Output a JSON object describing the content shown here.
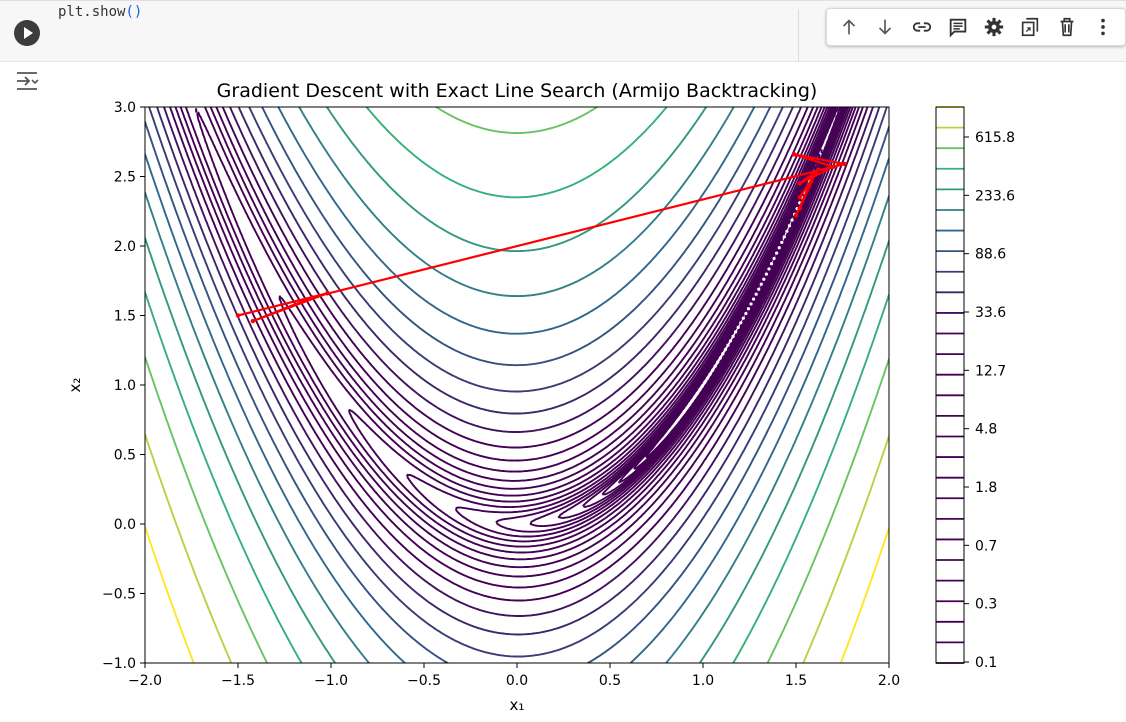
{
  "cell": {
    "code_text": "plt.show",
    "code_parens": "()"
  },
  "toolbar": {
    "items": [
      {
        "icon": "arrow-up-icon"
      },
      {
        "icon": "arrow-down-icon"
      },
      {
        "icon": "link-icon"
      },
      {
        "icon": "comment-icon"
      },
      {
        "icon": "gear-icon"
      },
      {
        "icon": "mirror-cell-icon"
      },
      {
        "icon": "trash-icon"
      },
      {
        "icon": "more-vert-icon"
      }
    ]
  },
  "output": {
    "icon": "output-toggle-icon"
  },
  "chart_data": {
    "type": "contour",
    "title": "Gradient Descent with Exact Line Search (Armijo Backtracking)",
    "xlabel": "x₁",
    "ylabel": "x₂",
    "xlim": [
      -2.0,
      2.0
    ],
    "ylim": [
      -1.0,
      3.0
    ],
    "xticks": [
      "−2.0",
      "−1.5",
      "−1.0",
      "−0.5",
      "0.0",
      "0.5",
      "1.0",
      "1.5",
      "2.0"
    ],
    "yticks": [
      "3.0",
      "2.5",
      "2.0",
      "1.5",
      "1.0",
      "0.5",
      "0.0",
      "−0.5",
      "−1.0"
    ],
    "function": "rosenbrock",
    "colorbar": {
      "labels": [
        "615.8",
        "233.6",
        "88.6",
        "33.6",
        "12.7",
        "4.8",
        "1.8",
        "0.7",
        "0.3",
        "0.1"
      ],
      "colormap": "viridis",
      "colors": {
        "low": "#440154",
        "mid": "#31688e",
        "high": "#35b779",
        "top": "#fde725"
      }
    },
    "path_color": "#ff0000",
    "path": [
      [
        -1.5,
        1.5
      ],
      [
        -1.02,
        1.66
      ],
      [
        -1.42,
        1.46
      ],
      [
        -1.1,
        1.63
      ],
      [
        1.76,
        2.59
      ],
      [
        1.49,
        2.66
      ],
      [
        1.7,
        2.57
      ],
      [
        1.52,
        2.45
      ],
      [
        1.62,
        2.55
      ],
      [
        1.52,
        2.35
      ],
      [
        1.6,
        2.51
      ],
      [
        1.52,
        2.27
      ],
      [
        1.57,
        2.43
      ],
      [
        1.5,
        2.22
      ]
    ]
  }
}
